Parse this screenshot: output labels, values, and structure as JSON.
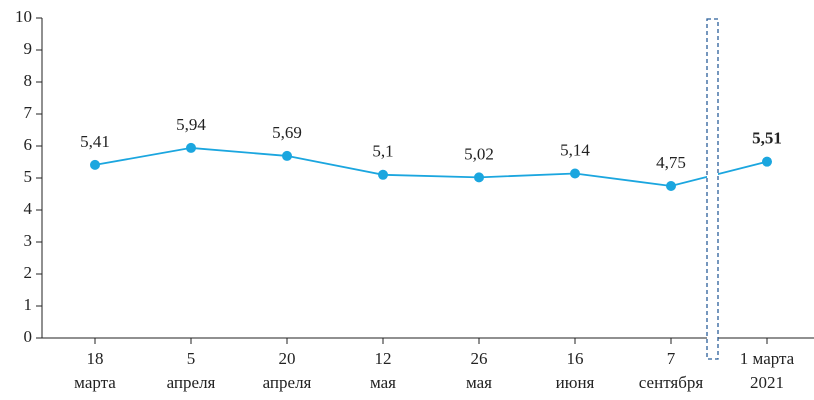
{
  "chart_data": {
    "type": "line",
    "categories": [
      [
        "18",
        "марта"
      ],
      [
        "5",
        "апреля"
      ],
      [
        "20",
        "апреля"
      ],
      [
        "12",
        "мая"
      ],
      [
        "26",
        "мая"
      ],
      [
        "16",
        "июня"
      ],
      [
        "7",
        "сентября"
      ],
      [
        "1 марта",
        "2021"
      ]
    ],
    "values": [
      5.41,
      5.94,
      5.69,
      5.1,
      5.02,
      5.14,
      4.75,
      5.51
    ],
    "value_labels": [
      "5,41",
      "5,94",
      "5,69",
      "5,1",
      "5,02",
      "5,14",
      "4,75",
      "5,51"
    ],
    "value_label_bold": [
      false,
      false,
      false,
      false,
      false,
      false,
      false,
      true
    ],
    "color": "#1ba6df",
    "ylim": [
      0,
      10
    ],
    "yticks": [
      0,
      1,
      2,
      3,
      4,
      5,
      6,
      7,
      8,
      9,
      10
    ],
    "grid": false
  }
}
